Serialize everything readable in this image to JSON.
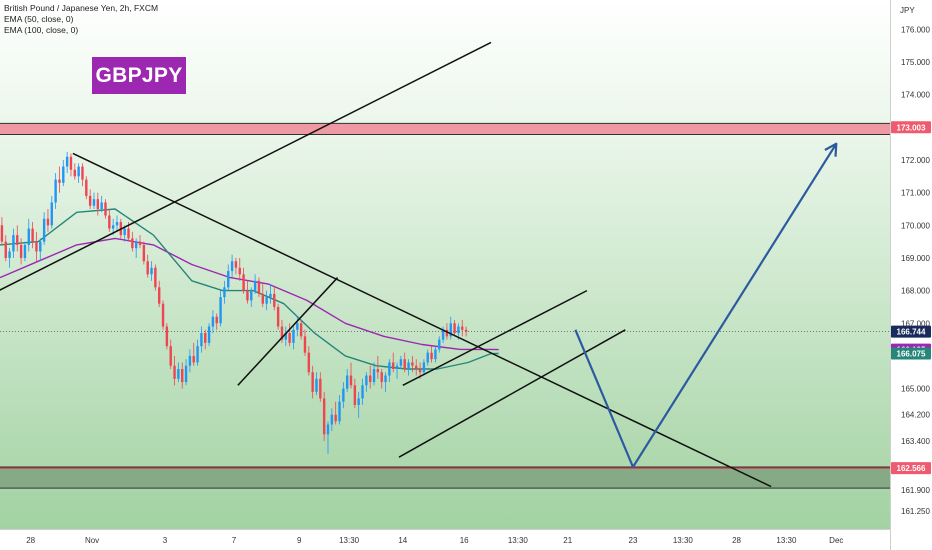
{
  "legend": {
    "symbol": "British Pound / Japanese Yen, 2h, FXCM",
    "ema50": "EMA (50, close, 0)",
    "ema100": "EMA (100, close, 0)"
  },
  "badge": {
    "text": "GBPJPY",
    "color": "#9c27b0"
  },
  "chart_data": {
    "type": "line",
    "currency": "JPY",
    "ylim": [
      160.7,
      176.9
    ],
    "y_ticks": [
      161.25,
      161.9,
      162.566,
      163.4,
      164.2,
      165.0,
      166.0,
      167.0,
      168.0,
      169.0,
      170.0,
      171.0,
      172.0,
      173.0,
      174.0,
      175.0,
      176.0
    ],
    "y_tick_labels": [
      "161.250",
      "161.900",
      "",
      "163.400",
      "164.200",
      "165.000",
      "",
      "167.000",
      "168.000",
      "169.000",
      "170.000",
      "171.000",
      "172.000",
      "",
      "174.000",
      "175.000",
      "176.000"
    ],
    "x_ticks": [
      {
        "label": "28",
        "bar": 8
      },
      {
        "label": "Nov",
        "bar": 24
      },
      {
        "label": "3",
        "bar": 43
      },
      {
        "label": "7",
        "bar": 61
      },
      {
        "label": "9",
        "bar": 78
      },
      {
        "label": "13:30",
        "bar": 91
      },
      {
        "label": "14",
        "bar": 105
      },
      {
        "label": "16",
        "bar": 121
      },
      {
        "label": "13:30",
        "bar": 135
      },
      {
        "label": "21",
        "bar": 148
      },
      {
        "label": "23",
        "bar": 165
      },
      {
        "label": "13:30",
        "bar": 178
      },
      {
        "label": "28",
        "bar": 192
      },
      {
        "label": "13:30",
        "bar": 205
      },
      {
        "label": "Dec",
        "bar": 218
      }
    ],
    "x_range_bars": [
      0,
      232
    ],
    "candles": [
      [
        170.0,
        170.25,
        169.4,
        169.5
      ],
      [
        169.5,
        169.7,
        168.9,
        169.0
      ],
      [
        169.0,
        169.3,
        168.7,
        169.2
      ],
      [
        169.2,
        169.9,
        169.0,
        169.7
      ],
      [
        169.7,
        170.0,
        169.2,
        169.4
      ],
      [
        169.4,
        169.6,
        168.8,
        169.0
      ],
      [
        169.0,
        169.5,
        168.9,
        169.4
      ],
      [
        169.4,
        170.2,
        169.2,
        169.9
      ],
      [
        169.9,
        170.1,
        169.3,
        169.5
      ],
      [
        169.5,
        169.8,
        168.9,
        169.2
      ],
      [
        169.2,
        169.6,
        168.9,
        169.5
      ],
      [
        169.5,
        170.4,
        169.4,
        170.2
      ],
      [
        170.2,
        170.5,
        169.8,
        170.0
      ],
      [
        170.0,
        170.9,
        169.9,
        170.7
      ],
      [
        170.7,
        171.6,
        170.5,
        171.4
      ],
      [
        171.4,
        171.8,
        171.0,
        171.3
      ],
      [
        171.3,
        172.0,
        171.2,
        171.8
      ],
      [
        171.8,
        172.25,
        171.6,
        172.1
      ],
      [
        172.1,
        172.2,
        171.5,
        171.7
      ],
      [
        171.7,
        171.9,
        171.4,
        171.5
      ],
      [
        171.5,
        171.9,
        171.3,
        171.8
      ],
      [
        171.8,
        171.9,
        171.2,
        171.4
      ],
      [
        171.4,
        171.5,
        170.8,
        170.9
      ],
      [
        170.9,
        171.1,
        170.5,
        170.6
      ],
      [
        170.6,
        171.0,
        170.5,
        170.8
      ],
      [
        170.8,
        171.0,
        170.3,
        170.5
      ],
      [
        170.5,
        170.9,
        170.4,
        170.7
      ],
      [
        170.7,
        170.8,
        170.2,
        170.3
      ],
      [
        170.3,
        170.5,
        169.8,
        169.9
      ],
      [
        169.9,
        170.2,
        169.7,
        170.0
      ],
      [
        170.0,
        170.3,
        169.8,
        170.1
      ],
      [
        170.1,
        170.2,
        169.6,
        169.7
      ],
      [
        169.7,
        170.0,
        169.5,
        169.9
      ],
      [
        169.9,
        170.1,
        169.5,
        169.6
      ],
      [
        169.6,
        169.8,
        169.2,
        169.3
      ],
      [
        169.3,
        169.6,
        169.0,
        169.5
      ],
      [
        169.5,
        169.7,
        169.3,
        169.4
      ],
      [
        169.4,
        169.5,
        168.8,
        168.9
      ],
      [
        168.9,
        169.1,
        168.4,
        168.5
      ],
      [
        168.5,
        168.9,
        168.3,
        168.7
      ],
      [
        168.7,
        168.8,
        168.0,
        168.1
      ],
      [
        168.1,
        168.3,
        167.5,
        167.6
      ],
      [
        167.6,
        167.7,
        166.8,
        166.9
      ],
      [
        166.9,
        167.0,
        166.2,
        166.3
      ],
      [
        166.3,
        166.5,
        165.6,
        165.7
      ],
      [
        165.7,
        166.0,
        165.1,
        165.3
      ],
      [
        165.3,
        165.8,
        165.2,
        165.6
      ],
      [
        165.6,
        165.8,
        165.0,
        165.2
      ],
      [
        165.2,
        165.9,
        165.1,
        165.7
      ],
      [
        165.7,
        166.2,
        165.5,
        166.0
      ],
      [
        166.0,
        166.4,
        165.7,
        165.8
      ],
      [
        165.8,
        166.5,
        165.7,
        166.3
      ],
      [
        166.3,
        166.9,
        166.1,
        166.7
      ],
      [
        166.7,
        166.8,
        166.2,
        166.4
      ],
      [
        166.4,
        167.0,
        166.3,
        166.9
      ],
      [
        166.9,
        167.4,
        166.7,
        167.2
      ],
      [
        167.2,
        167.3,
        166.8,
        167.0
      ],
      [
        167.0,
        168.0,
        166.9,
        167.8
      ],
      [
        167.8,
        168.3,
        167.6,
        168.1
      ],
      [
        168.1,
        168.8,
        168.0,
        168.6
      ],
      [
        168.6,
        169.1,
        168.4,
        168.9
      ],
      [
        168.9,
        169.0,
        168.5,
        168.7
      ],
      [
        168.7,
        169.0,
        168.3,
        168.5
      ],
      [
        168.5,
        168.7,
        167.9,
        168.0
      ],
      [
        168.0,
        168.3,
        167.6,
        167.7
      ],
      [
        167.7,
        168.1,
        167.5,
        168.0
      ],
      [
        168.0,
        168.5,
        167.9,
        168.3
      ],
      [
        168.3,
        168.4,
        167.8,
        167.9
      ],
      [
        167.9,
        168.2,
        167.5,
        167.6
      ],
      [
        167.6,
        168.0,
        167.4,
        167.8
      ],
      [
        167.8,
        168.2,
        167.6,
        167.9
      ],
      [
        167.9,
        168.1,
        167.4,
        167.5
      ],
      [
        167.5,
        167.6,
        166.8,
        166.9
      ],
      [
        166.9,
        167.1,
        166.4,
        166.5
      ],
      [
        166.5,
        166.9,
        166.3,
        166.7
      ],
      [
        166.7,
        167.0,
        166.3,
        166.4
      ],
      [
        166.4,
        166.9,
        166.2,
        166.8
      ],
      [
        166.8,
        167.2,
        166.6,
        167.0
      ],
      [
        167.0,
        167.1,
        166.5,
        166.6
      ],
      [
        166.6,
        166.8,
        166.0,
        166.1
      ],
      [
        166.1,
        166.3,
        165.4,
        165.5
      ],
      [
        165.5,
        165.7,
        164.7,
        164.9
      ],
      [
        164.9,
        165.5,
        164.8,
        165.3
      ],
      [
        165.3,
        165.5,
        164.6,
        164.7
      ],
      [
        164.7,
        164.9,
        163.4,
        163.6
      ],
      [
        163.6,
        164.0,
        163.0,
        163.9
      ],
      [
        163.9,
        164.4,
        163.7,
        164.2
      ],
      [
        164.2,
        164.6,
        163.9,
        164.0
      ],
      [
        164.0,
        164.8,
        163.9,
        164.6
      ],
      [
        164.6,
        165.2,
        164.4,
        165.0
      ],
      [
        165.0,
        165.6,
        164.9,
        165.4
      ],
      [
        165.4,
        165.8,
        165.0,
        165.1
      ],
      [
        165.1,
        165.3,
        164.4,
        164.5
      ],
      [
        164.5,
        164.9,
        164.1,
        164.7
      ],
      [
        164.7,
        165.3,
        164.5,
        165.1
      ],
      [
        165.1,
        165.5,
        164.9,
        165.4
      ],
      [
        165.4,
        165.7,
        165.0,
        165.2
      ],
      [
        165.2,
        165.8,
        165.1,
        165.6
      ],
      [
        165.6,
        166.0,
        165.3,
        165.5
      ],
      [
        165.5,
        165.6,
        165.0,
        165.2
      ],
      [
        165.2,
        165.5,
        164.9,
        165.4
      ],
      [
        165.4,
        165.9,
        165.2,
        165.8
      ],
      [
        165.8,
        166.1,
        165.5,
        165.6
      ],
      [
        165.6,
        165.8,
        165.3,
        165.7
      ],
      [
        165.7,
        166.0,
        165.6,
        165.9
      ],
      [
        165.9,
        166.1,
        165.5,
        165.6
      ],
      [
        165.6,
        165.9,
        165.4,
        165.8
      ],
      [
        165.8,
        166.0,
        165.5,
        165.7
      ],
      [
        165.7,
        165.9,
        165.4,
        165.6
      ],
      [
        165.6,
        165.8,
        165.3,
        165.5
      ],
      [
        165.5,
        165.9,
        165.4,
        165.8
      ],
      [
        165.8,
        166.2,
        165.7,
        166.1
      ],
      [
        166.1,
        166.3,
        165.8,
        165.9
      ],
      [
        165.9,
        166.3,
        165.8,
        166.2
      ],
      [
        166.2,
        166.6,
        166.1,
        166.5
      ],
      [
        166.5,
        166.9,
        166.4,
        166.8
      ],
      [
        166.8,
        167.0,
        166.5,
        166.6
      ],
      [
        166.6,
        167.2,
        166.5,
        167.0
      ],
      [
        167.0,
        167.1,
        166.6,
        166.7
      ],
      [
        166.7,
        167.0,
        166.5,
        166.9
      ],
      [
        166.9,
        167.1,
        166.6,
        166.8
      ],
      [
        166.8,
        166.9,
        166.6,
        166.744
      ]
    ],
    "ema50": {
      "name": "EMA (50, close, 0)",
      "color": "#26867a",
      "points": [
        [
          0,
          169.4
        ],
        [
          10,
          169.5
        ],
        [
          20,
          170.4
        ],
        [
          30,
          170.5
        ],
        [
          40,
          169.7
        ],
        [
          50,
          168.3
        ],
        [
          58,
          168.0
        ],
        [
          66,
          168.0
        ],
        [
          74,
          167.6
        ],
        [
          82,
          166.7
        ],
        [
          90,
          166.0
        ],
        [
          98,
          165.7
        ],
        [
          106,
          165.6
        ],
        [
          114,
          165.6
        ],
        [
          122,
          165.8
        ],
        [
          128,
          166.07
        ],
        [
          130,
          166.075
        ]
      ]
    },
    "ema100": {
      "name": "EMA (100, close, 0)",
      "color": "#9c27b0",
      "points": [
        [
          0,
          168.4
        ],
        [
          10,
          168.9
        ],
        [
          20,
          169.4
        ],
        [
          30,
          169.6
        ],
        [
          40,
          169.4
        ],
        [
          50,
          168.8
        ],
        [
          60,
          168.4
        ],
        [
          70,
          168.2
        ],
        [
          80,
          167.7
        ],
        [
          90,
          167.0
        ],
        [
          100,
          166.6
        ],
        [
          110,
          166.35
        ],
        [
          120,
          166.2
        ],
        [
          128,
          166.2
        ],
        [
          130,
          166.195
        ]
      ]
    },
    "price_labels": [
      {
        "value": 173.003,
        "label": "173.003",
        "bg": "#f05a6e",
        "fg": "#ffffff"
      },
      {
        "value": 166.744,
        "label": "166.744",
        "bg": "#1a2a5a",
        "fg": "#ffffff"
      },
      {
        "value": 166.195,
        "label": "166.195",
        "bg": "#9c27b0",
        "fg": "#ffffff"
      },
      {
        "value": 166.075,
        "label": "166.075",
        "bg": "#26867a",
        "fg": "#ffffff"
      },
      {
        "value": 162.566,
        "label": "162.566",
        "bg": "#f05a6e",
        "fg": "#ffffff"
      }
    ],
    "zones": [
      {
        "from": 172.78,
        "to": 173.12,
        "color": "#f08a96"
      },
      {
        "from": 161.95,
        "to": 162.6,
        "color": "#7fa17f"
      }
    ],
    "trendlines": [
      {
        "from": [
          -2,
          167.9
        ],
        "to": [
          128,
          175.6
        ],
        "color": "#111111"
      },
      {
        "from": [
          19,
          172.2
        ],
        "to": [
          201,
          162.0
        ],
        "color": "#111111"
      },
      {
        "from": [
          62,
          165.1
        ],
        "to": [
          88,
          168.4
        ],
        "color": "#111111"
      },
      {
        "from": [
          105,
          165.1
        ],
        "to": [
          153,
          168.0
        ],
        "color": "#111111"
      },
      {
        "from": [
          104,
          162.9
        ],
        "to": [
          163,
          166.8
        ],
        "color": "#111111"
      }
    ],
    "projection": {
      "color": "#2c5aa0",
      "points": [
        [
          150,
          166.8
        ],
        [
          165,
          162.6
        ],
        [
          218,
          172.5
        ]
      ]
    }
  }
}
